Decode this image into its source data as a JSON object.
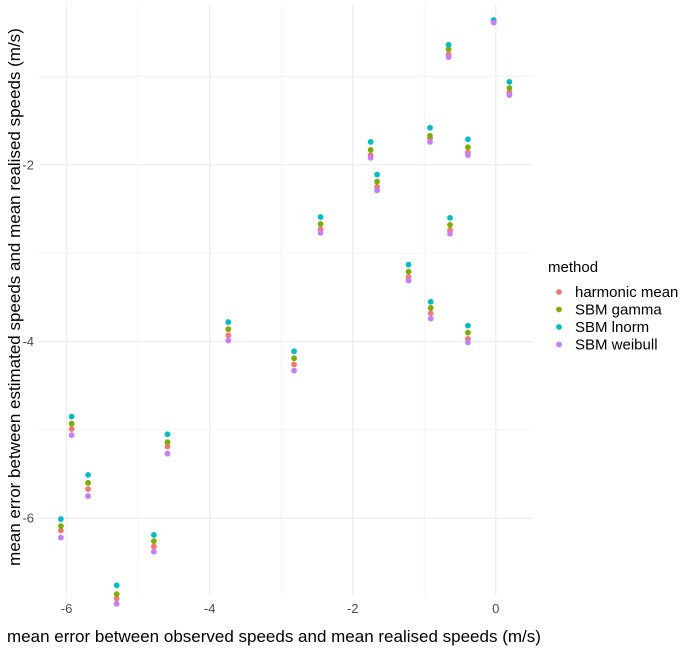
{
  "chart_data": {
    "type": "scatter",
    "xlabel": "mean error between observed speeds and mean realised speeds (m/s)",
    "ylabel": "mean error between estimated speeds and mean realised speeds (m/s)",
    "xlim": [
      -6.4,
      0.52
    ],
    "ylim": [
      -6.87,
      -0.19
    ],
    "x_ticks": [
      -6,
      -4,
      -2,
      0
    ],
    "y_ticks": [
      -6,
      -4,
      -2
    ],
    "x_tick_labels": [
      "-6",
      "-4",
      "-2",
      "0"
    ],
    "y_tick_labels": [
      "-6",
      "-4",
      "-2"
    ],
    "grid": true,
    "legend": {
      "title": "method",
      "placement": "right"
    },
    "x": [
      -0.03,
      -0.66,
      0.19,
      -0.92,
      -1.75,
      -0.39,
      -1.66,
      -2.45,
      -0.64,
      -1.22,
      -0.91,
      -0.39,
      -3.74,
      -2.82,
      -5.93,
      -4.59,
      -5.7,
      -6.08,
      -4.78,
      -5.3
    ],
    "series": [
      {
        "name": "harmonic mean",
        "color": "#F8766D",
        "values": [
          -0.37,
          -0.75,
          -1.18,
          -1.7,
          -1.89,
          -1.86,
          -2.25,
          -2.73,
          -2.74,
          -3.27,
          -3.68,
          -3.97,
          -3.93,
          -4.26,
          -4.99,
          -5.19,
          -5.67,
          -6.14,
          -6.32,
          -6.91
        ]
      },
      {
        "name": "SBM gamma",
        "color": "#7CAE00",
        "values": [
          -0.37,
          -0.69,
          -1.13,
          -1.67,
          -1.83,
          -1.8,
          -2.19,
          -2.67,
          -2.68,
          -3.21,
          -3.62,
          -3.9,
          -3.86,
          -4.19,
          -4.93,
          -5.14,
          -5.6,
          -6.09,
          -6.26,
          -6.86
        ]
      },
      {
        "name": "SBM lnorm",
        "color": "#00BFC4",
        "values": [
          -0.36,
          -0.64,
          -1.06,
          -1.58,
          -1.74,
          -1.71,
          -2.11,
          -2.59,
          -2.6,
          -3.13,
          -3.55,
          -3.82,
          -3.78,
          -4.11,
          -4.85,
          -5.05,
          -5.51,
          -6.01,
          -6.19,
          -6.76
        ]
      },
      {
        "name": "SBM weibull",
        "color": "#C77CFF",
        "values": [
          -0.39,
          -0.78,
          -1.21,
          -1.74,
          -1.92,
          -1.89,
          -2.29,
          -2.77,
          -2.78,
          -3.31,
          -3.74,
          -4.01,
          -3.99,
          -4.33,
          -5.06,
          -5.27,
          -5.75,
          -6.22,
          -6.38,
          -6.97
        ]
      }
    ]
  }
}
